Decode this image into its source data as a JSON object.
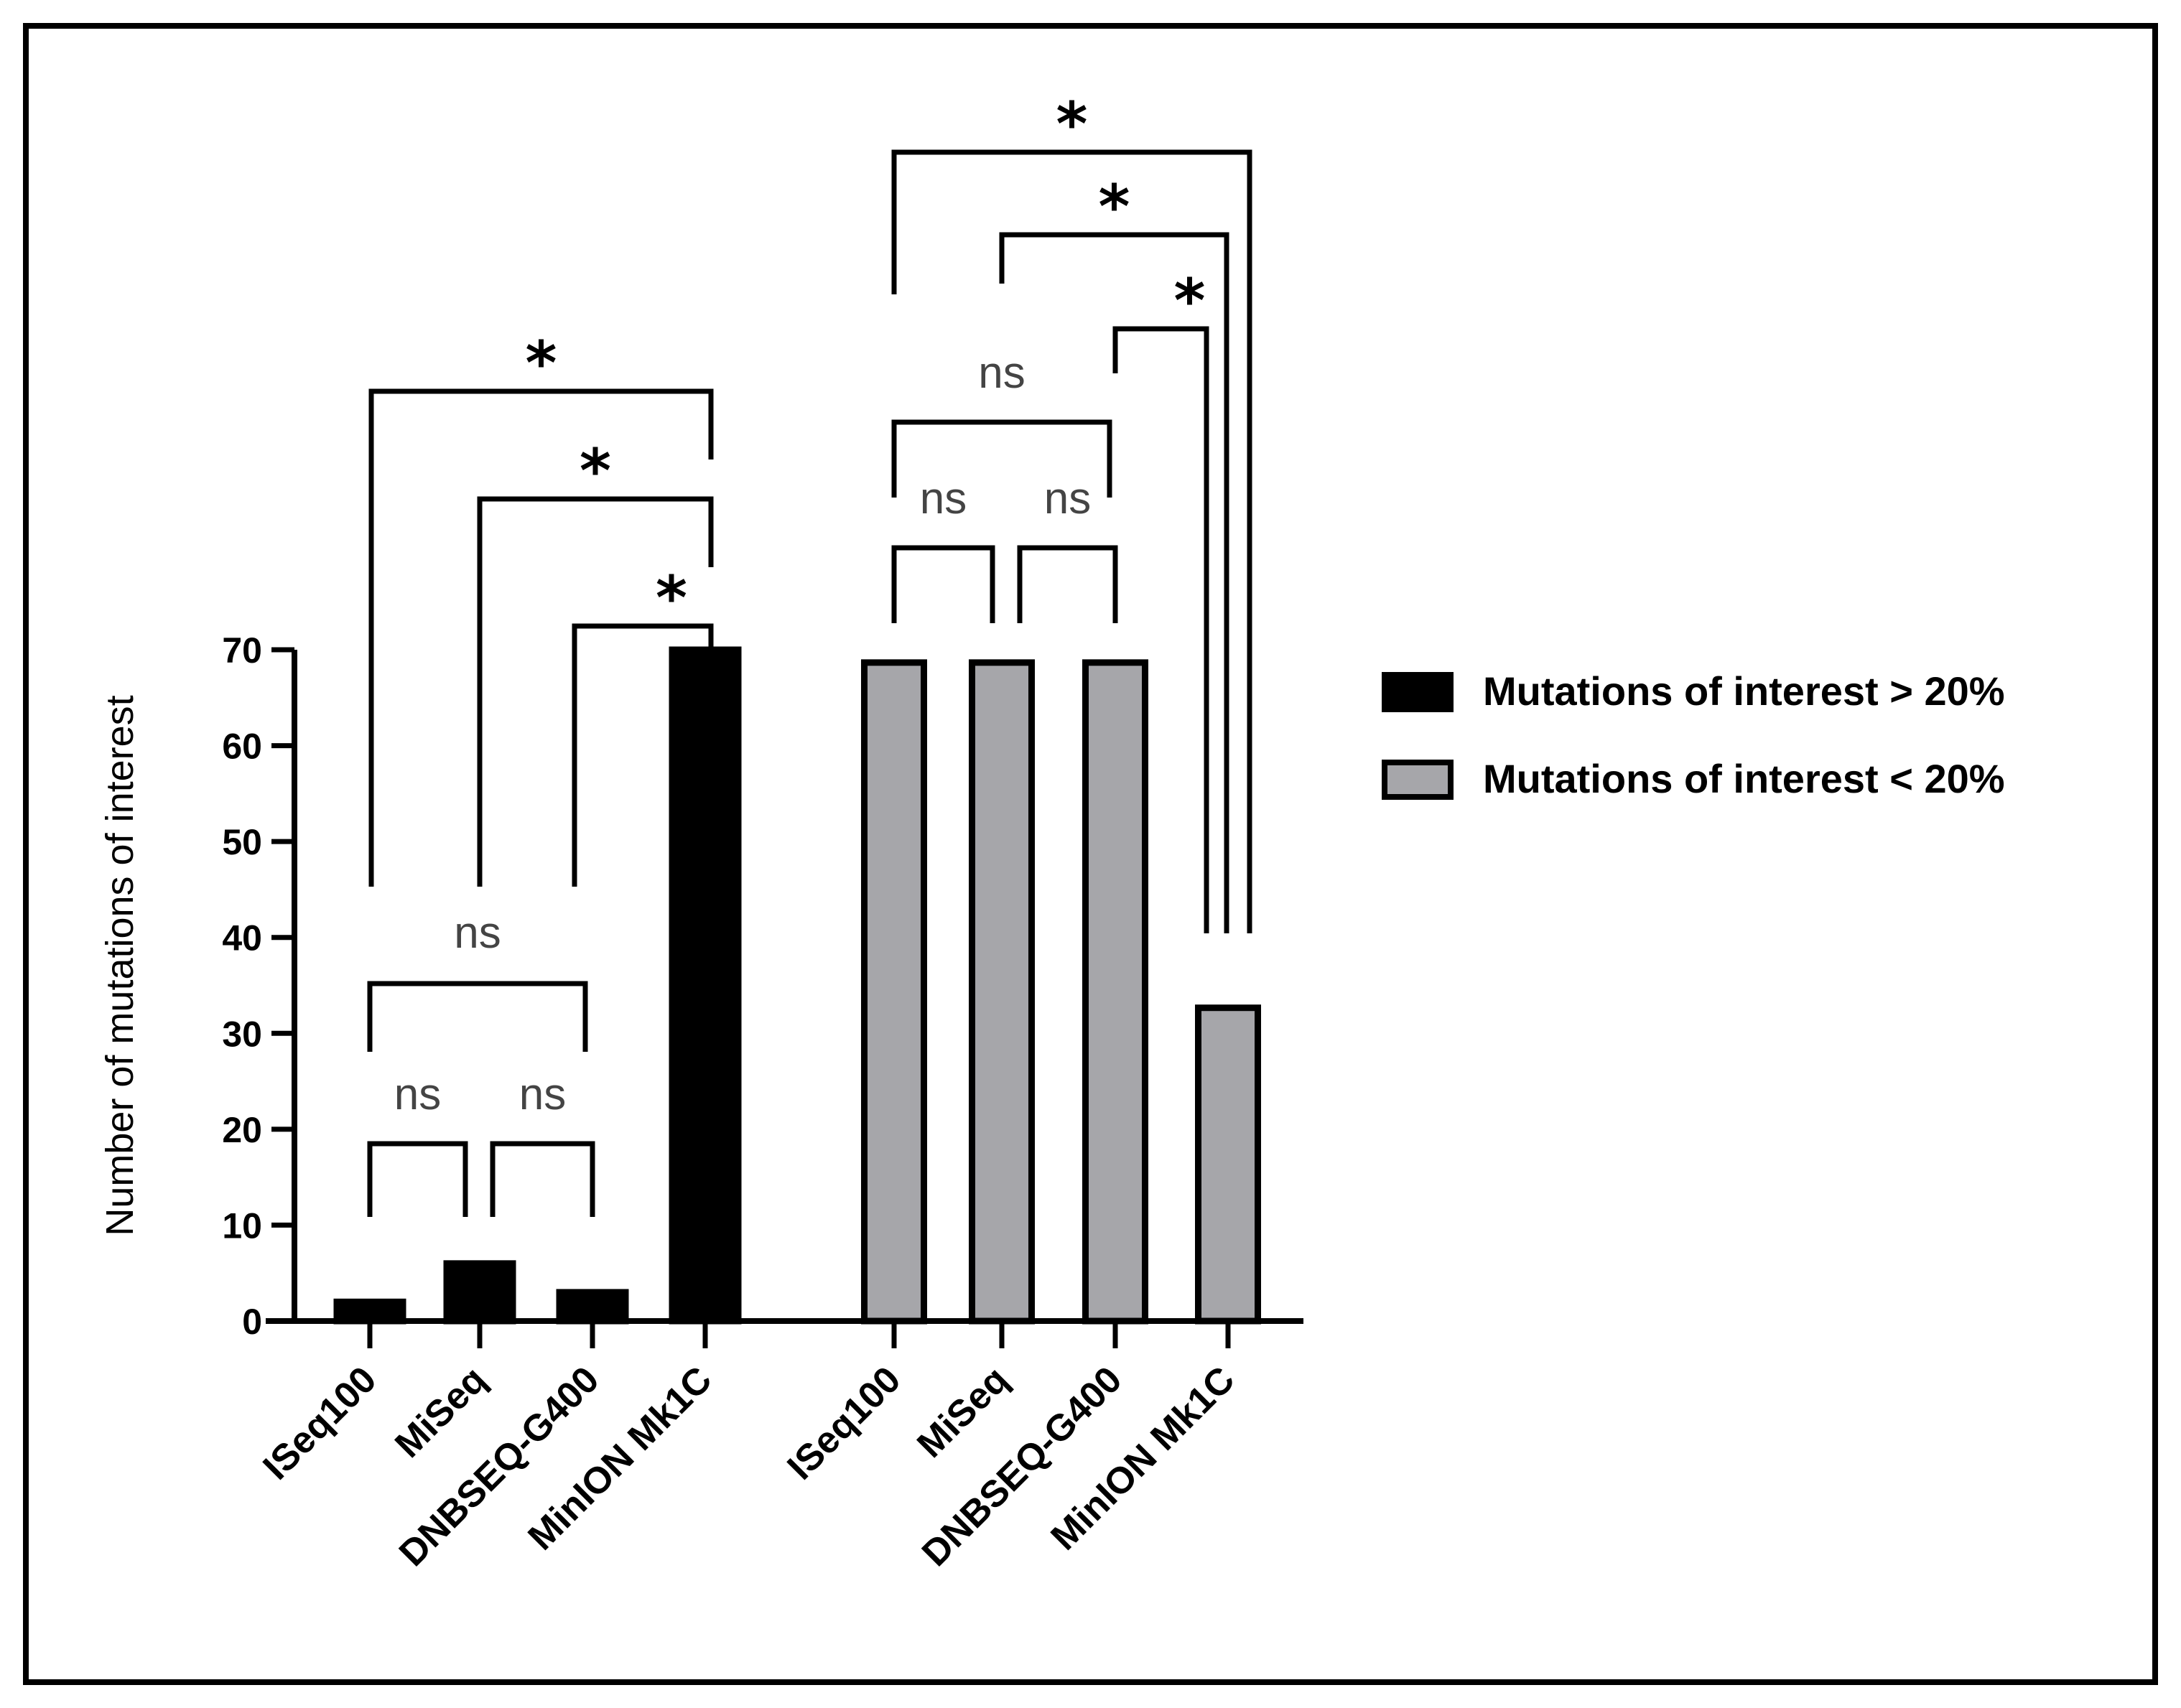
{
  "chart_data": {
    "type": "bar",
    "title": "",
    "xlabel": "",
    "ylabel": "Number of mutations of interest",
    "ylim": [
      0,
      70
    ],
    "yticks": [
      0,
      10,
      20,
      30,
      40,
      50,
      60,
      70
    ],
    "categories": [
      "ISeq100",
      "MiSeq",
      "DNBSEQ-G400",
      "MinION Mk1C"
    ],
    "series": [
      {
        "name": "Mutations of interest > 20%",
        "color": "#000000",
        "values": [
          2,
          6,
          3,
          70
        ]
      },
      {
        "name": "Mutations of interest < 20%",
        "color": "#a6a6aa",
        "values": [
          69,
          69,
          69,
          33
        ]
      }
    ],
    "comparisons": [
      {
        "series": 0,
        "from": 0,
        "to": 1,
        "label": "ns",
        "level": 0
      },
      {
        "series": 0,
        "from": 1,
        "to": 2,
        "label": "ns",
        "level": 0
      },
      {
        "series": 0,
        "from": 0,
        "to": 2,
        "label": "ns",
        "level": 1
      },
      {
        "series": 0,
        "from": 2,
        "to": 3,
        "label": "*",
        "level": 2
      },
      {
        "series": 0,
        "from": 1,
        "to": 3,
        "label": "*",
        "level": 3
      },
      {
        "series": 0,
        "from": 0,
        "to": 3,
        "label": "*",
        "level": 4
      },
      {
        "series": 1,
        "from": 0,
        "to": 1,
        "label": "ns",
        "level": 0
      },
      {
        "series": 1,
        "from": 1,
        "to": 2,
        "label": "ns",
        "level": 0
      },
      {
        "series": 1,
        "from": 0,
        "to": 2,
        "label": "ns",
        "level": 1
      },
      {
        "series": 1,
        "from": 2,
        "to": 3,
        "label": "*",
        "level": 2
      },
      {
        "series": 1,
        "from": 1,
        "to": 3,
        "label": "*",
        "level": 3
      },
      {
        "series": 1,
        "from": 0,
        "to": 3,
        "label": "*",
        "level": 4
      }
    ],
    "legend_position": "right"
  }
}
